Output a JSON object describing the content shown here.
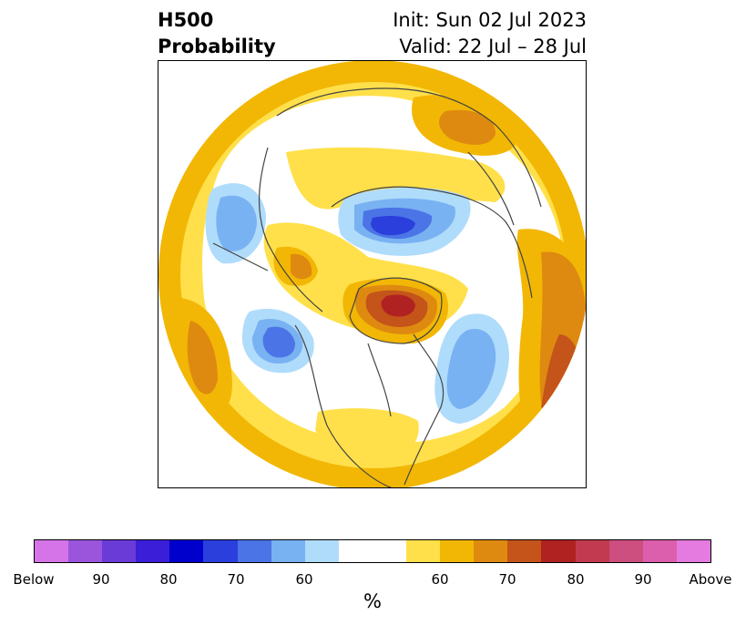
{
  "title": {
    "left_line1": "H500",
    "left_line2": "Probability",
    "right_line1": "Init: Sun 02 Jul 2023",
    "right_line2": "Valid: 22 Jul – 28 Jul"
  },
  "map": {
    "projection": "north-polar-stereographic",
    "variable": "500 hPa height probability",
    "features": [
      {
        "name": "Greenland",
        "category": "above",
        "peak_percent": 80
      },
      {
        "name": "Northern Scandinavia / Barents",
        "category": "below",
        "peak_percent": 80
      },
      {
        "name": "Gulf of Alaska",
        "category": "below",
        "peak_percent": 80
      },
      {
        "name": "North Atlantic",
        "category": "below",
        "peak_percent": 70
      },
      {
        "name": "Northwest Pacific",
        "category": "below",
        "peak_percent": 70
      },
      {
        "name": "Eastern Siberia",
        "category": "above",
        "peak_percent": 70
      }
    ]
  },
  "colorbar": {
    "colors": [
      "#d574e8",
      "#9b55dd",
      "#6b3bd8",
      "#3a1ed8",
      "#0000cc",
      "#2a3fdc",
      "#4b74e6",
      "#79b2f2",
      "#b0dcfb",
      "#ffffff",
      "#ffe04a",
      "#f2b705",
      "#de8a10",
      "#c4541a",
      "#b02222",
      "#c23a50",
      "#cc4f80",
      "#dc5fad",
      "#e57be0"
    ],
    "labels": [
      "Below",
      "90",
      "80",
      "70",
      "60",
      "60",
      "70",
      "80",
      "90",
      "Above"
    ],
    "unit": "%"
  }
}
